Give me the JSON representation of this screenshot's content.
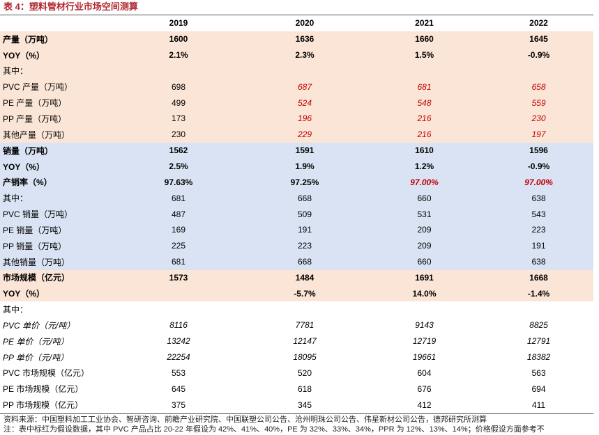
{
  "title": "表 4：塑料管材行业市场空间测算",
  "columns": [
    "",
    "2019",
    "2020",
    "2021",
    "2022"
  ],
  "rows": [
    {
      "label": "产量（万吨）",
      "bg": "orange",
      "bold": true,
      "cells": [
        "1600",
        "1636",
        "1660",
        "1645"
      ],
      "est": [
        false,
        false,
        false,
        false
      ]
    },
    {
      "label": "YOY（%）",
      "bg": "orange",
      "bold": true,
      "cells": [
        "2.1%",
        "2.3%",
        "1.5%",
        "-0.9%"
      ],
      "est": [
        false,
        false,
        false,
        false
      ]
    },
    {
      "label": "其中：",
      "bg": "orange",
      "bold": false,
      "cells": [
        "",
        "",
        "",
        ""
      ],
      "est": [
        false,
        false,
        false,
        false
      ]
    },
    {
      "label": "PVC 产量（万吨）",
      "bg": "orange",
      "bold": false,
      "cells": [
        "698",
        "687",
        "681",
        "658"
      ],
      "est": [
        false,
        true,
        true,
        true
      ]
    },
    {
      "label": "PE 产量（万吨）",
      "bg": "orange",
      "bold": false,
      "cells": [
        "499",
        "524",
        "548",
        "559"
      ],
      "est": [
        false,
        true,
        true,
        true
      ]
    },
    {
      "label": "PP 产量（万吨）",
      "bg": "orange",
      "bold": false,
      "cells": [
        "173",
        "196",
        "216",
        "230"
      ],
      "est": [
        false,
        true,
        true,
        true
      ]
    },
    {
      "label": "其他产量（万吨）",
      "bg": "orange",
      "bold": false,
      "cells": [
        "230",
        "229",
        "216",
        "197"
      ],
      "est": [
        false,
        true,
        true,
        true
      ]
    },
    {
      "label": "销量（万吨）",
      "bg": "blue",
      "bold": true,
      "cells": [
        "1562",
        "1591",
        "1610",
        "1596"
      ],
      "est": [
        false,
        false,
        false,
        false
      ]
    },
    {
      "label": "YOY（%）",
      "bg": "blue",
      "bold": true,
      "cells": [
        "2.5%",
        "1.9%",
        "1.2%",
        "-0.9%"
      ],
      "est": [
        false,
        false,
        false,
        false
      ]
    },
    {
      "label": "产销率（%）",
      "bg": "blue",
      "bold": true,
      "cells": [
        "97.63%",
        "97.25%",
        "97.00%",
        "97.00%"
      ],
      "est": [
        false,
        false,
        true,
        true
      ]
    },
    {
      "label": "其中：",
      "bg": "blue",
      "bold": false,
      "cells": [
        "681",
        "668",
        "660",
        "638"
      ],
      "est": [
        false,
        false,
        false,
        false
      ]
    },
    {
      "label": "PVC 销量（万吨）",
      "bg": "blue",
      "bold": false,
      "cells": [
        "487",
        "509",
        "531",
        "543"
      ],
      "est": [
        false,
        false,
        false,
        false
      ]
    },
    {
      "label": "PE 销量（万吨）",
      "bg": "blue",
      "bold": false,
      "cells": [
        "169",
        "191",
        "209",
        "223"
      ],
      "est": [
        false,
        false,
        false,
        false
      ]
    },
    {
      "label": "PP 销量（万吨）",
      "bg": "blue",
      "bold": false,
      "cells": [
        "225",
        "223",
        "209",
        "191"
      ],
      "est": [
        false,
        false,
        false,
        false
      ]
    },
    {
      "label": "其他销量（万吨）",
      "bg": "blue",
      "bold": false,
      "cells": [
        "681",
        "668",
        "660",
        "638"
      ],
      "est": [
        false,
        false,
        false,
        false
      ]
    },
    {
      "label": "市场规模（亿元）",
      "bg": "orange",
      "bold": true,
      "cells": [
        "1573",
        "1484",
        "1691",
        "1668"
      ],
      "est": [
        false,
        false,
        false,
        false
      ]
    },
    {
      "label": "YOY（%）",
      "bg": "orange",
      "bold": true,
      "cells": [
        "",
        "-5.7%",
        "14.0%",
        "-1.4%"
      ],
      "est": [
        false,
        false,
        false,
        false
      ]
    },
    {
      "label": "其中：",
      "bg": "white",
      "bold": false,
      "cells": [
        "",
        "",
        "",
        ""
      ],
      "est": [
        false,
        false,
        false,
        false
      ]
    },
    {
      "label": "PVC 单价（元/吨）",
      "bg": "white",
      "bold": false,
      "italic": true,
      "cells": [
        "8116",
        "7781",
        "9143",
        "8825"
      ],
      "est": [
        false,
        false,
        false,
        false
      ]
    },
    {
      "label": "PE 单价（元/吨）",
      "bg": "white",
      "bold": false,
      "italic": true,
      "cells": [
        "13242",
        "12147",
        "12719",
        "12791"
      ],
      "est": [
        false,
        false,
        false,
        false
      ]
    },
    {
      "label": "PP 单价（元/吨）",
      "bg": "white",
      "bold": false,
      "italic": true,
      "cells": [
        "22254",
        "18095",
        "19661",
        "18382"
      ],
      "est": [
        false,
        false,
        false,
        false
      ]
    },
    {
      "label": "PVC 市场规模（亿元）",
      "bg": "white",
      "bold": false,
      "cells": [
        "553",
        "520",
        "604",
        "563"
      ],
      "est": [
        false,
        false,
        false,
        false
      ]
    },
    {
      "label": "PE 市场规模（亿元）",
      "bg": "white",
      "bold": false,
      "cells": [
        "645",
        "618",
        "676",
        "694"
      ],
      "est": [
        false,
        false,
        false,
        false
      ]
    },
    {
      "label": "PP 市场规模（亿元）",
      "bg": "white",
      "bold": false,
      "cells": [
        "375",
        "345",
        "412",
        "411"
      ],
      "est": [
        false,
        false,
        false,
        false
      ]
    }
  ],
  "source": "资料来源：中国塑料加工工业协会、智研咨询、前瞻产业研究院、中国联塑公司公告、沧州明珠公司公告、伟星新材公司公告，德邦研究所测算",
  "note": "注：表中标红为假设数据，其中 PVC 产品占比 20-22 年假设为 42%、41%、40%，PE 为 32%、33%、34%，PPR 为 12%、13%、14%；价格假设方面参考不",
  "colors": {
    "orange_band": "#fbe5d6",
    "blue_band": "#dae3f3",
    "estimate_text": "#c00000",
    "title_text": "#b0272f"
  }
}
